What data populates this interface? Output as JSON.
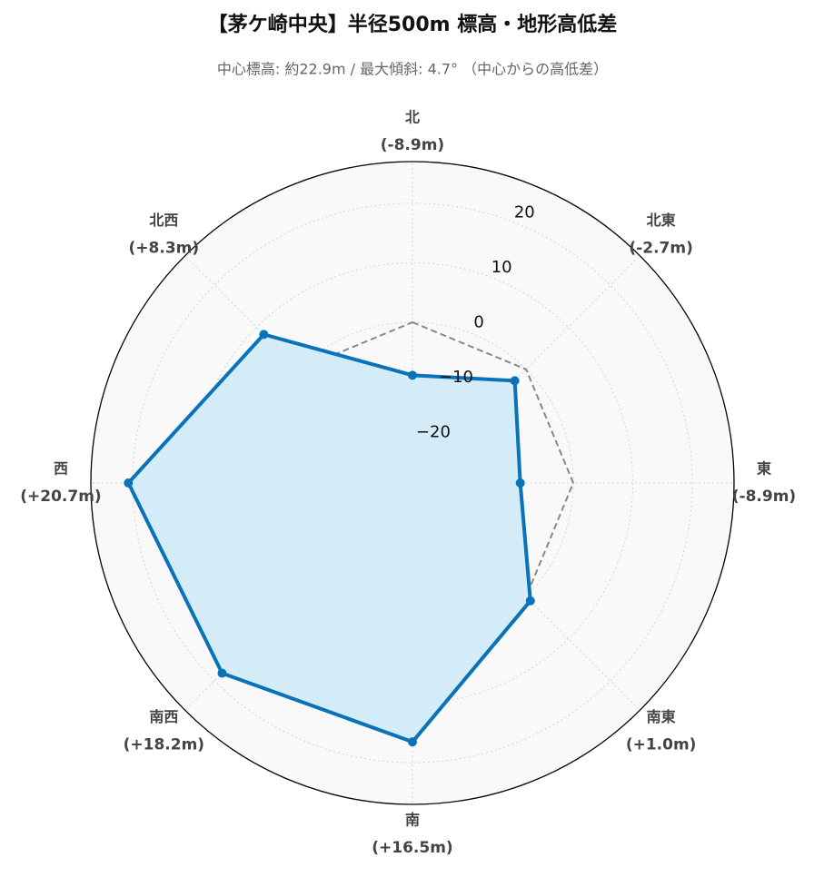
{
  "chart_data": {
    "type": "radar",
    "title": "【茅ケ崎中央】半径500m 標高・地形高低差",
    "subtitle": "中心標高: 約22.9m / 最大傾斜: 4.7° （中心からの高低差）",
    "categories": [
      "北",
      "北東",
      "東",
      "南東",
      "南",
      "南西",
      "西",
      "北西"
    ],
    "series": [
      {
        "color": "#0a72b8",
        "fill": "#d3ecf8",
        "values": [
          -8.9,
          -2.7,
          -8.9,
          1.0,
          16.5,
          18.2,
          20.7,
          8.3
        ],
        "value_labels": [
          "(-8.9m)",
          "(-2.7m)",
          "(-8.9m)",
          "(+1.0m)",
          "(+16.5m)",
          "(+18.2m)",
          "(+20.7m)",
          "(+8.3m)"
        ]
      }
    ],
    "reference_value": 0,
    "ylim": [
      -27,
      27
    ],
    "yticks": [
      {
        "value": -20,
        "label": "−20"
      },
      {
        "value": -10,
        "label": "−10"
      },
      0,
      10,
      20
    ],
    "grid": true
  }
}
